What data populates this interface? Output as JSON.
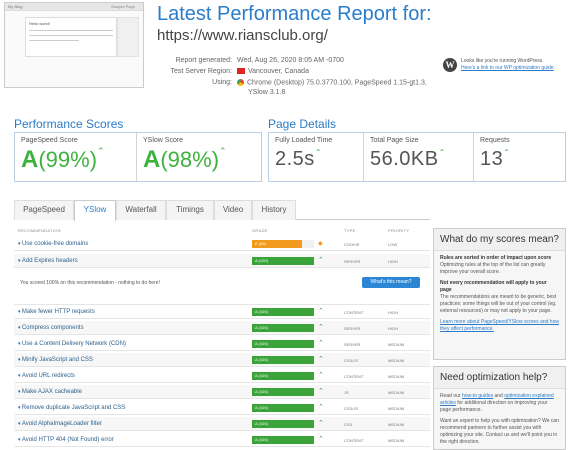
{
  "thumbnail": {
    "site_name": "My Blog",
    "heading": "Hello world!",
    "menu": "Sample Page"
  },
  "header": {
    "title": "Latest Performance Report for:",
    "url": "https://www.riansclub.org/",
    "meta": [
      {
        "key": "Report generated:",
        "value": "Wed, Aug 26, 2020 8:05 AM -0700"
      },
      {
        "key": "Test Server Region:",
        "value": "Vancouver, Canada"
      },
      {
        "key": "Using:",
        "value": "Chrome (Desktop) 75.0.3770.100, PageSpeed 1.15-gt1.3,",
        "value2": "YSlow 3.1.8"
      }
    ],
    "wp_line1": "Looks like you're running WordPress.",
    "wp_line2": "Here's a link to our WP optimization guide"
  },
  "performance": {
    "title": "Performance Scores",
    "pagespeed_label": "PageSpeed Score",
    "pagespeed_grade": "A",
    "pagespeed_pct": "(99%)",
    "yslow_label": "YSlow Score",
    "yslow_grade": "A",
    "yslow_pct": "(98%)"
  },
  "details": {
    "title": "Page Details",
    "load_label": "Fully Loaded Time",
    "load_value": "2.5s",
    "size_label": "Total Page Size",
    "size_value": "56.0KB",
    "req_label": "Requests",
    "req_value": "13"
  },
  "tabs": [
    "PageSpeed",
    "YSlow",
    "Waterfall",
    "Timings",
    "Video",
    "History"
  ],
  "active_tab": "YSlow",
  "table": {
    "headers": {
      "rec": "RECOMMENDATION",
      "grade": "GRADE",
      "type": "TYPE",
      "priority": "PRIORITY"
    },
    "rows": [
      {
        "name": "Use cookie-free domains",
        "grade": "E (56)",
        "type": "COOKIE",
        "priority": "LOW",
        "status": "orange"
      },
      {
        "name": "Add Expires headers",
        "grade": "A (100)",
        "type": "SERVER",
        "priority": "HIGH",
        "status": "green"
      },
      {
        "name": "Make fewer HTTP requests",
        "grade": "A (100)",
        "type": "CONTENT",
        "priority": "HIGH",
        "status": "green"
      },
      {
        "name": "Compress components",
        "grade": "A (100)",
        "type": "SERVER",
        "priority": "HIGH",
        "status": "green"
      },
      {
        "name": "Use a Content Delivery Network (CDN)",
        "grade": "A (100)",
        "type": "SERVER",
        "priority": "MEDIUM",
        "status": "green"
      },
      {
        "name": "Minify JavaScript and CSS",
        "grade": "A (100)",
        "type": "CSS/JS",
        "priority": "MEDIUM",
        "status": "green"
      },
      {
        "name": "Avoid URL redirects",
        "grade": "A (100)",
        "type": "CONTENT",
        "priority": "MEDIUM",
        "status": "green"
      },
      {
        "name": "Make AJAX cacheable",
        "grade": "A (100)",
        "type": "JS",
        "priority": "MEDIUM",
        "status": "green"
      },
      {
        "name": "Remove duplicate JavaScript and CSS",
        "grade": "A (100)",
        "type": "CSS/JS",
        "priority": "MEDIUM",
        "status": "green"
      },
      {
        "name": "Avoid AlphaImageLoader filter",
        "grade": "A (100)",
        "type": "CSS",
        "priority": "MEDIUM",
        "status": "green"
      },
      {
        "name": "Avoid HTTP 404 (Not Found) error",
        "grade": "A (100)",
        "type": "CONTENT",
        "priority": "MEDIUM",
        "status": "green"
      }
    ],
    "expand_msg": "You scored 100% on this recommendation - nothing to do here!",
    "expand_btn": "What's this mean?"
  },
  "side1": {
    "title": "What do my scores mean?",
    "b1": "Rules are sorted in order of impact upon score",
    "p1": "Optimizing rules at the top of the list can greatly improve your overall score.",
    "b2": "Not every recommendation will apply to your page",
    "p2": "The recommendations are meant to be generic, best practices; some things will be out of your control (eg. external resources) or may not apply to your page.",
    "link": "Learn more about PageSpeed/YSlow scores and how they affect performance."
  },
  "side2": {
    "title": "Need optimization help?",
    "p1a": "Read our ",
    "link1": "how-to guides",
    "p1b": " and ",
    "link2": "optimization explained articles",
    "p1c": " for additional direction on improving your page performance.",
    "p2": "Want an expert to help you with optimization? We can recommend partners to further assist you with optimizing your site. Contact us and we'll point you in the right direction."
  },
  "colors": {
    "accent": "#2b7cc9",
    "good": "#3aa33a",
    "warn": "#f29a1e"
  }
}
